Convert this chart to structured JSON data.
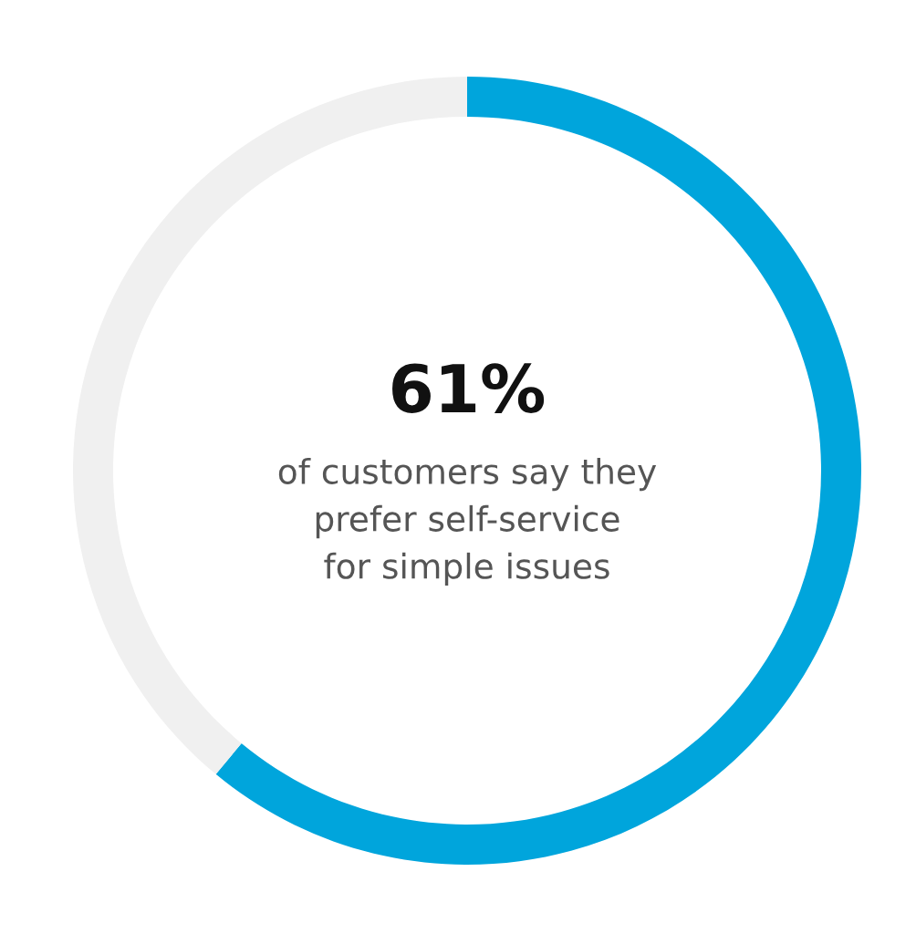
{
  "chart_data": {
    "type": "donut",
    "categories": [
      null,
      null
    ],
    "values": [
      61,
      39
    ],
    "colors": [
      "#00a5dc",
      "#f0f0f0"
    ],
    "value_labels": [
      "61%",
      null
    ],
    "annotations": [
      "of customers say they\nprefer self-service\nfor simple issues"
    ]
  }
}
